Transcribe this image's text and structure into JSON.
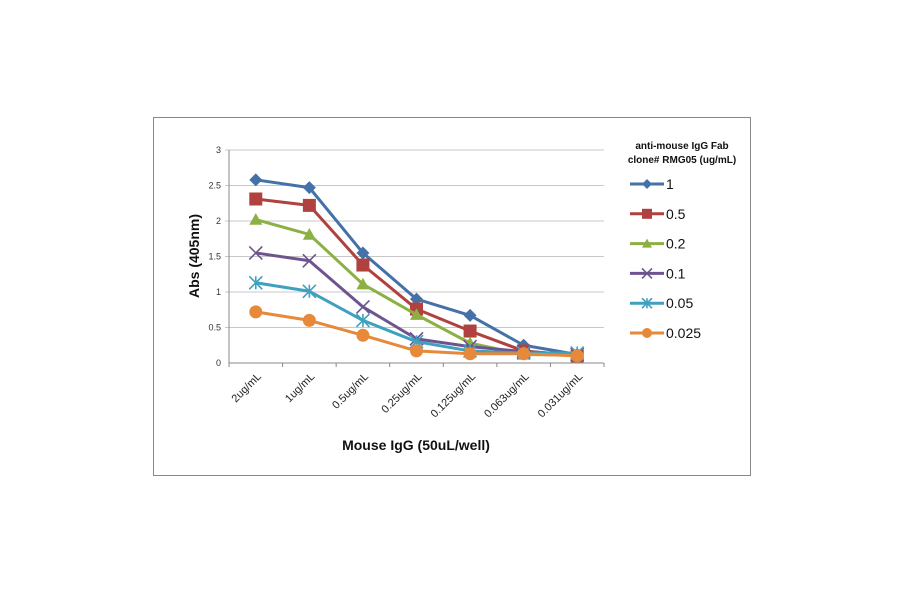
{
  "chart_data": {
    "type": "line",
    "title": "",
    "xlabel": "Mouse IgG (50uL/well)",
    "ylabel": "Abs (405nm)",
    "ylim": [
      0,
      3
    ],
    "yticks": [
      "0",
      "0.5",
      "1",
      "1.5",
      "2",
      "2.5",
      "3"
    ],
    "grid": true,
    "categories": [
      "2ug/mL",
      "1ug/mL",
      "0.5ug/mL",
      "0.25ug/mL",
      "0.125ug/mL",
      "0.063ug/mL",
      "0.031ug/mL"
    ],
    "legend": {
      "title_line1": "anti-mouse IgG Fab",
      "title_line2": "clone# RMG05 (ug/mL)",
      "placement": "right"
    },
    "series": [
      {
        "name": "1",
        "color": "#4472A8",
        "marker": "diamond",
        "values": [
          2.58,
          2.47,
          1.55,
          0.9,
          0.67,
          0.25,
          0.12
        ]
      },
      {
        "name": "0.5",
        "color": "#B0413E",
        "marker": "square",
        "values": [
          2.31,
          2.22,
          1.38,
          0.76,
          0.45,
          0.17,
          0.1
        ]
      },
      {
        "name": "0.2",
        "color": "#8CB043",
        "marker": "triangle",
        "values": [
          2.02,
          1.81,
          1.11,
          0.68,
          0.28,
          0.12,
          0.11
        ]
      },
      {
        "name": "0.1",
        "color": "#6E548F",
        "marker": "x",
        "values": [
          1.55,
          1.44,
          0.79,
          0.34,
          0.23,
          0.16,
          0.12
        ]
      },
      {
        "name": "0.05",
        "color": "#3FA1BE",
        "marker": "star",
        "values": [
          1.13,
          1.01,
          0.6,
          0.3,
          0.17,
          0.14,
          0.14
        ]
      },
      {
        "name": "0.025",
        "color": "#E6893A",
        "marker": "circle",
        "values": [
          0.72,
          0.6,
          0.39,
          0.17,
          0.13,
          0.13,
          0.1
        ]
      }
    ]
  }
}
